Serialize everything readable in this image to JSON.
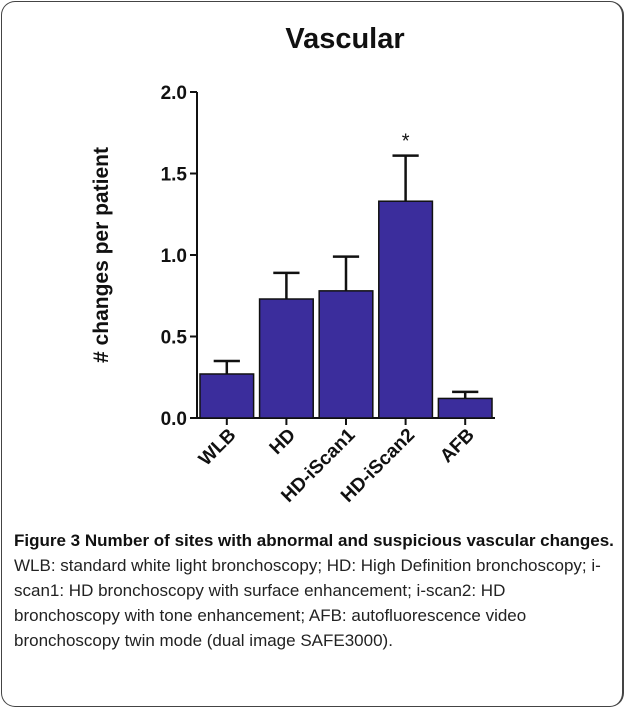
{
  "chart_data": {
    "type": "bar",
    "title": "Vascular",
    "y_label": "# changes per patient",
    "categories": [
      "WLB",
      "HD",
      "HD-iScan1",
      "HD-iScan2",
      "AFB"
    ],
    "values": [
      0.27,
      0.73,
      0.78,
      1.33,
      0.12
    ],
    "errors": [
      0.08,
      0.16,
      0.21,
      0.28,
      0.04
    ],
    "color": "#3b2d9c",
    "annotations": [
      {
        "category": 3,
        "text": "*"
      }
    ],
    "ylim": [
      0,
      2.0
    ],
    "yticks": [
      {
        "value": 0,
        "label": "0.0"
      },
      0.5,
      {
        "value": 1,
        "label": "1.0"
      },
      1.5,
      {
        "value": 2,
        "label": "2.0"
      }
    ]
  },
  "caption": {
    "title": "Figure 3 Number of sites with abnormal and suspicious vascular changes.",
    "text": "WLB: standard white light bronchoscopy; HD: High Definition bronchoscopy; i-scan1: HD bronchoscopy with surface enhancement; i-scan2: HD bronchoscopy with tone enhancement; AFB: autofluorescence video bronchoscopy twin mode (dual image SAFE3000)."
  }
}
